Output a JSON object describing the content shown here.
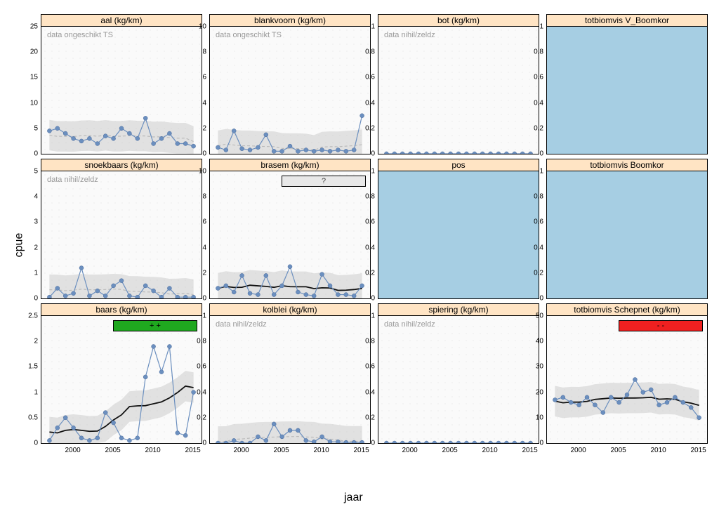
{
  "axis_labels": {
    "x": "jaar",
    "y": "cpue"
  },
  "global": {
    "years": [
      1997,
      1998,
      1999,
      2000,
      2001,
      2002,
      2003,
      2004,
      2005,
      2006,
      2007,
      2008,
      2009,
      2010,
      2011,
      2012,
      2013,
      2014,
      2015
    ],
    "xlim": [
      1996,
      2016
    ],
    "x_ticks": [
      2000,
      2005,
      2010,
      2015
    ],
    "strip_bg": "#ffe4c4",
    "panel_bg": "#fafafa",
    "blue_fill": "#a6cee3",
    "line_color": "#6b8fbf",
    "marker_color": "#6b8fbf",
    "marker_size": 3,
    "line_width": 1.2,
    "trend_color": "#111111",
    "trend_dash_color": "#bbbbbb",
    "band_color": "#c8c8c8",
    "band_opacity": 0.5,
    "grid_dot_color": "#dddddd",
    "note_color": "#999999",
    "badge_colors": {
      "green": "#1fa81f",
      "red": "#ef2020",
      "gray": "#e8e8e8"
    },
    "font_family": "Arial",
    "title_fontsize": 12,
    "tick_fontsize": 10,
    "axis_label_fontsize": 16
  },
  "panels": [
    {
      "title": "aal (kg/km)",
      "note": "data ongeschikt TS",
      "bluefill": false,
      "ylim": [
        0,
        25
      ],
      "y_ticks": [
        0,
        5,
        10,
        15,
        20,
        25
      ],
      "values": [
        4.5,
        5,
        4,
        3,
        2.5,
        3,
        2,
        3.5,
        3,
        5,
        4,
        3,
        7,
        2,
        3,
        4,
        2,
        2,
        1.5
      ],
      "trend": "dashed",
      "band": true
    },
    {
      "title": "blankvoorn (kg/km)",
      "note": "data ongeschikt TS",
      "bluefill": false,
      "ylim": [
        0,
        10
      ],
      "y_ticks": [
        0,
        2,
        4,
        6,
        8,
        10
      ],
      "values": [
        0.5,
        0.3,
        1.8,
        0.4,
        0.3,
        0.5,
        1.5,
        0.2,
        0.2,
        0.6,
        0.2,
        0.3,
        0.2,
        0.3,
        0.2,
        0.3,
        0.2,
        0.3,
        3.0
      ],
      "trend": "dashed",
      "band": true
    },
    {
      "title": "bot (kg/km)",
      "note": "data nihil/zeldz",
      "bluefill": false,
      "ylim": [
        0,
        1
      ],
      "y_ticks": [
        0,
        0.2,
        0.4,
        0.6,
        0.8,
        1.0
      ],
      "values": [
        0,
        0,
        0,
        0,
        0,
        0,
        0,
        0,
        0,
        0,
        0,
        0,
        0,
        0,
        0,
        0,
        0,
        0,
        0
      ],
      "trend": null,
      "band": false
    },
    {
      "title": "totbiomvis V_Boomkor",
      "note": null,
      "bluefill": true,
      "ylim": [
        0,
        1
      ],
      "y_ticks": [
        0,
        0.2,
        0.4,
        0.6,
        0.8,
        1.0
      ],
      "values": null,
      "trend": null,
      "band": false
    },
    {
      "title": "snoekbaars (kg/km)",
      "note": "data nihil/zeldz",
      "bluefill": false,
      "ylim": [
        0,
        5
      ],
      "y_ticks": [
        0,
        1,
        2,
        3,
        4,
        5
      ],
      "values": [
        0.05,
        0.4,
        0.1,
        0.2,
        1.2,
        0.1,
        0.3,
        0.1,
        0.5,
        0.7,
        0.1,
        0.05,
        0.5,
        0.3,
        0.05,
        0.4,
        0.05,
        0.05,
        0.05
      ],
      "trend": "dashed",
      "band": true
    },
    {
      "title": "brasem (kg/km)",
      "note": null,
      "bluefill": false,
      "badge": {
        "type": "gray",
        "text": "?"
      },
      "ylim": [
        0,
        10
      ],
      "y_ticks": [
        0,
        2,
        4,
        6,
        8,
        10
      ],
      "values": [
        0.8,
        1.0,
        0.5,
        1.8,
        0.4,
        0.3,
        1.8,
        0.3,
        1.0,
        2.5,
        0.5,
        0.3,
        0.2,
        1.9,
        1.0,
        0.3,
        0.3,
        0.2,
        1.0
      ],
      "trend": "solid",
      "band": true
    },
    {
      "title": "pos",
      "note": null,
      "bluefill": true,
      "ylim": [
        0,
        1
      ],
      "y_ticks": [
        0,
        0.2,
        0.4,
        0.6,
        0.8,
        1.0
      ],
      "values": null,
      "trend": null,
      "band": false
    },
    {
      "title": "totbiomvis Boomkor",
      "note": null,
      "bluefill": true,
      "ylim": [
        0,
        1
      ],
      "y_ticks": [
        0,
        0.2,
        0.4,
        0.6,
        0.8,
        1.0
      ],
      "values": null,
      "trend": null,
      "band": false
    },
    {
      "title": "baars (kg/km)",
      "note": null,
      "bluefill": false,
      "badge": {
        "type": "green",
        "text": "+ +"
      },
      "ylim": [
        0,
        2.5
      ],
      "y_ticks": [
        0,
        0.5,
        1.0,
        1.5,
        2.0,
        2.5
      ],
      "values": [
        0.05,
        0.3,
        0.5,
        0.3,
        0.1,
        0.05,
        0.1,
        0.6,
        0.4,
        0.1,
        0.05,
        0.1,
        1.3,
        1.9,
        1.4,
        1.9,
        0.2,
        0.15,
        1.0
      ],
      "trend": "solid",
      "band": true
    },
    {
      "title": "kolblei (kg/km)",
      "note": "data nihil/zeldz",
      "bluefill": false,
      "ylim": [
        0,
        1
      ],
      "y_ticks": [
        0,
        0.2,
        0.4,
        0.6,
        0.8,
        1.0
      ],
      "values": [
        0,
        0,
        0.02,
        0,
        0,
        0.05,
        0.02,
        0.15,
        0.05,
        0.1,
        0.1,
        0.02,
        0.01,
        0.05,
        0.01,
        0.01,
        0.005,
        0.005,
        0.005
      ],
      "trend": "dashed",
      "band": true
    },
    {
      "title": "spiering (kg/km)",
      "note": "data nihil/zeldz",
      "bluefill": false,
      "ylim": [
        0,
        1
      ],
      "y_ticks": [
        0,
        0.2,
        0.4,
        0.6,
        0.8,
        1.0
      ],
      "values": [
        0,
        0,
        0,
        0,
        0,
        0,
        0,
        0,
        0,
        0,
        0,
        0,
        0,
        0,
        0,
        0,
        0,
        0,
        0
      ],
      "trend": null,
      "band": false
    },
    {
      "title": "totbiomvis Schepnet (kg/km)",
      "note": null,
      "bluefill": false,
      "badge": {
        "type": "red",
        "text": "- -"
      },
      "ylim": [
        0,
        50
      ],
      "y_ticks": [
        0,
        10,
        20,
        30,
        40,
        50
      ],
      "values": [
        17,
        18,
        16,
        15,
        18,
        15,
        12,
        18,
        16,
        19,
        25,
        20,
        21,
        15,
        16,
        18,
        16,
        14,
        10
      ],
      "trend": "solid",
      "band": true
    }
  ]
}
